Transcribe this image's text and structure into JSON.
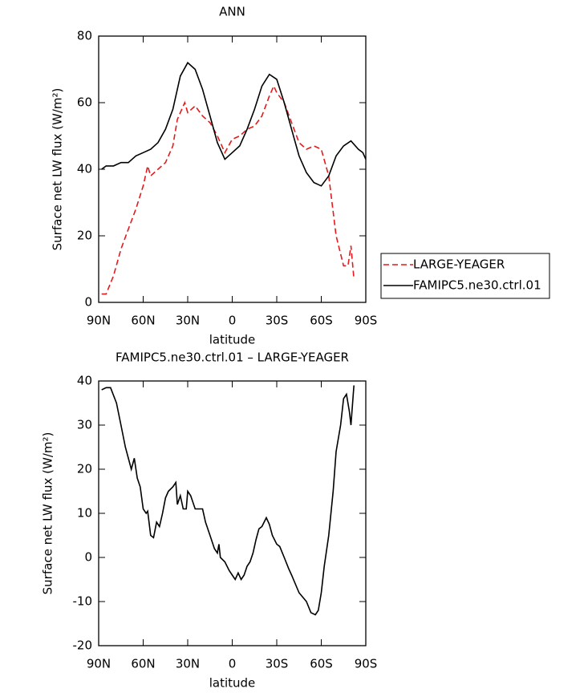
{
  "chart_data": [
    {
      "type": "line",
      "title": "ANN",
      "xlabel": "latitude",
      "ylabel": "Surface net LW flux (W/m²)",
      "xlim": [
        90,
        -90
      ],
      "ylim": [
        0,
        80
      ],
      "xticks": [
        {
          "value": 90,
          "label": "90N"
        },
        {
          "value": 60,
          "label": "60N"
        },
        {
          "value": 30,
          "label": "30N"
        },
        0,
        {
          "value": -30,
          "label": "30S"
        },
        {
          "value": -60,
          "label": "60S"
        },
        {
          "value": -90,
          "label": "90S"
        }
      ],
      "yticks": [
        0,
        20,
        40,
        60,
        80
      ],
      "legend": "right",
      "series": [
        {
          "name": "LARGE-YEAGER",
          "color": "#e41a1c",
          "dash": true,
          "x": [
            88,
            85,
            80,
            75,
            70,
            65,
            60,
            57,
            55,
            50,
            45,
            40,
            37,
            32,
            30,
            25,
            20,
            15,
            10,
            5,
            0,
            -5,
            -10,
            -15,
            -20,
            -25,
            -28,
            -30,
            -35,
            -40,
            -45,
            -50,
            -55,
            -60,
            -65,
            -70,
            -75,
            -78,
            -80,
            -82
          ],
          "values": [
            2.5,
            2.5,
            8,
            16,
            22,
            28,
            35,
            41,
            38,
            40,
            42,
            47,
            55,
            60,
            57,
            59,
            56,
            54,
            50,
            45,
            49,
            50,
            52,
            53,
            56,
            62,
            65,
            63,
            60,
            54,
            48,
            46,
            47,
            46,
            38,
            20,
            11,
            11,
            17,
            7
          ]
        },
        {
          "name": "FAMIPC5.ne30.ctrl.01",
          "color": "#000000",
          "dash": false,
          "x": [
            88,
            85,
            80,
            75,
            70,
            65,
            60,
            55,
            50,
            45,
            40,
            35,
            30,
            25,
            20,
            15,
            10,
            5,
            0,
            -5,
            -10,
            -15,
            -20,
            -25,
            -30,
            -35,
            -40,
            -45,
            -50,
            -55,
            -60,
            -65,
            -70,
            -75,
            -80,
            -85,
            -88,
            -90
          ],
          "values": [
            40,
            41,
            41,
            42,
            42,
            44,
            45,
            46,
            48,
            52,
            58,
            68,
            72,
            70,
            64,
            56,
            48,
            43,
            45,
            47,
            52,
            58,
            65,
            68.5,
            67,
            60,
            52,
            44,
            39,
            36,
            35,
            38,
            44,
            47,
            48.5,
            46,
            45,
            43
          ]
        }
      ]
    },
    {
      "type": "line",
      "title": "FAMIPC5.ne30.ctrl.01 – LARGE-YEAGER",
      "xlabel": "latitude",
      "ylabel": "Surface net LW flux (W/m²)",
      "xlim": [
        90,
        -90
      ],
      "ylim": [
        -20,
        40
      ],
      "xticks": [
        {
          "value": 90,
          "label": "90N"
        },
        {
          "value": 60,
          "label": "60N"
        },
        {
          "value": 30,
          "label": "30N"
        },
        0,
        {
          "value": -30,
          "label": "30S"
        },
        {
          "value": -60,
          "label": "60S"
        },
        {
          "value": -90,
          "label": "90S"
        }
      ],
      "yticks": [
        -20,
        -10,
        0,
        10,
        20,
        30,
        40
      ],
      "color": "#000000",
      "x": [
        88,
        85,
        82,
        78,
        75,
        72,
        68,
        66,
        64,
        62,
        60,
        58,
        57,
        55,
        53,
        51,
        49,
        47,
        45,
        43,
        40,
        38,
        37,
        35,
        33,
        31,
        30,
        28,
        25,
        20,
        18,
        15,
        12,
        10,
        9,
        8,
        5,
        2,
        0,
        -2,
        -4,
        -6,
        -8,
        -10,
        -12,
        -14,
        -16,
        -18,
        -20,
        -23,
        -25,
        -27,
        -30,
        -32,
        -35,
        -38,
        -40,
        -45,
        -50,
        -53,
        -56,
        -58,
        -60,
        -62,
        -65,
        -68,
        -70,
        -73,
        -75,
        -77,
        -79,
        -80,
        -82
      ],
      "values": [
        38,
        38.5,
        38.5,
        35,
        30,
        25,
        20,
        22.5,
        18,
        16,
        11,
        10,
        10.5,
        5,
        4.5,
        8,
        7,
        10,
        13.5,
        15,
        16,
        17,
        12,
        14,
        11,
        11,
        15,
        14,
        11,
        11,
        8,
        5,
        2,
        1,
        3,
        0,
        -1,
        -3,
        -4,
        -5,
        -3.5,
        -5,
        -4,
        -2,
        -1,
        1,
        4,
        6.5,
        7,
        9,
        7.5,
        5,
        3,
        2.5,
        0,
        -2.5,
        -4,
        -8,
        -10,
        -12.5,
        -13,
        -12,
        -8,
        -2,
        5,
        15,
        24,
        30,
        36,
        37,
        33,
        30,
        39
      ]
    }
  ]
}
